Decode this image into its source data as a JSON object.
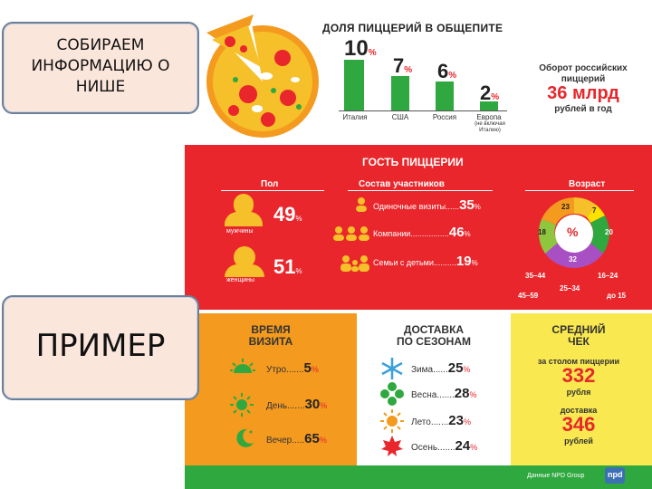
{
  "callouts": {
    "top": [
      "СОБИРАЕМ",
      "ИНФОРМАЦИЮ О",
      "НИШЕ"
    ],
    "bottom": "ПРИМЕР"
  },
  "share": {
    "title": "ДОЛЯ ПИЦЦЕРИЙ В ОБЩЕПИТЕ",
    "bars": [
      {
        "value": "10",
        "label": "Италия",
        "pct": 10
      },
      {
        "value": "7",
        "label": "США",
        "pct": 7
      },
      {
        "value": "6",
        "label": "Россия",
        "pct": 6
      },
      {
        "value": "2",
        "label": "Европа",
        "pct": 2
      }
    ],
    "unit": "%",
    "europe_note_1": "(не включая",
    "europe_note_2": "Италию)",
    "turnover_label_1": "Оборот российских",
    "turnover_label_2": "пиццерий",
    "turnover_value": "36 млрд",
    "turnover_period": "рублей в год"
  },
  "guest": {
    "title": "ГОСТЬ ПИЦЦЕРИИ",
    "gender_title": "Пол",
    "men_label": "мужчины",
    "men_value": "49",
    "women_label": "женщины",
    "women_value": "51",
    "composition_title": "Состав участников",
    "composition": [
      {
        "label": "Одиночные визиты",
        "dots": "......",
        "value": "35"
      },
      {
        "label": "Компании",
        "dots": ".................",
        "value": "46"
      },
      {
        "label": "Семьи с детьми",
        "dots": "..........",
        "value": "19"
      }
    ],
    "age_title": "Возраст",
    "age_center": "%",
    "age_slices": [
      {
        "value": "23",
        "color": "#f6c02a"
      },
      {
        "value": "7",
        "color": "#ffe100"
      },
      {
        "value": "20",
        "color": "#2fa83f"
      },
      {
        "value": "32",
        "color": "#9ec93a"
      },
      {
        "value": "18",
        "color": "#8ec63f"
      }
    ],
    "age_ranges": [
      "35–44",
      "16–24",
      "45–59",
      "25–34",
      "до 15"
    ],
    "unit": "%"
  },
  "visit": {
    "title_1": "ВРЕМЯ",
    "title_2": "ВИЗИТА",
    "rows": [
      {
        "label": "Утро",
        "dots": ".......",
        "value": "5"
      },
      {
        "label": "День",
        "dots": ".......",
        "value": "30"
      },
      {
        "label": "Вечер",
        "dots": ".....",
        "value": "65"
      }
    ]
  },
  "delivery": {
    "title_1": "ДОСТАВКА",
    "title_2": "ПО СЕЗОНАМ",
    "rows": [
      {
        "label": "Зима",
        "dots": "......",
        "value": "25"
      },
      {
        "label": "Весна",
        "dots": ".......",
        "value": "28"
      },
      {
        "label": "Лето",
        "dots": ".......",
        "value": "23"
      },
      {
        "label": "Осень",
        "dots": ".......",
        "value": "24"
      }
    ]
  },
  "check": {
    "title_1": "СРЕДНИЙ",
    "title_2": "ЧЕК",
    "table_label": "за столом пиццерии",
    "table_value": "332",
    "table_unit": "рубля",
    "delivery_label": "доставка",
    "delivery_value": "346",
    "delivery_unit": "рублей"
  },
  "footer": {
    "right_text": "Данные NPD Group",
    "logo_text": "npd"
  },
  "colors": {
    "red": "#e8262b",
    "green": "#2fa83f",
    "orange": "#f39a1f",
    "yellow": "#f6c02a"
  }
}
